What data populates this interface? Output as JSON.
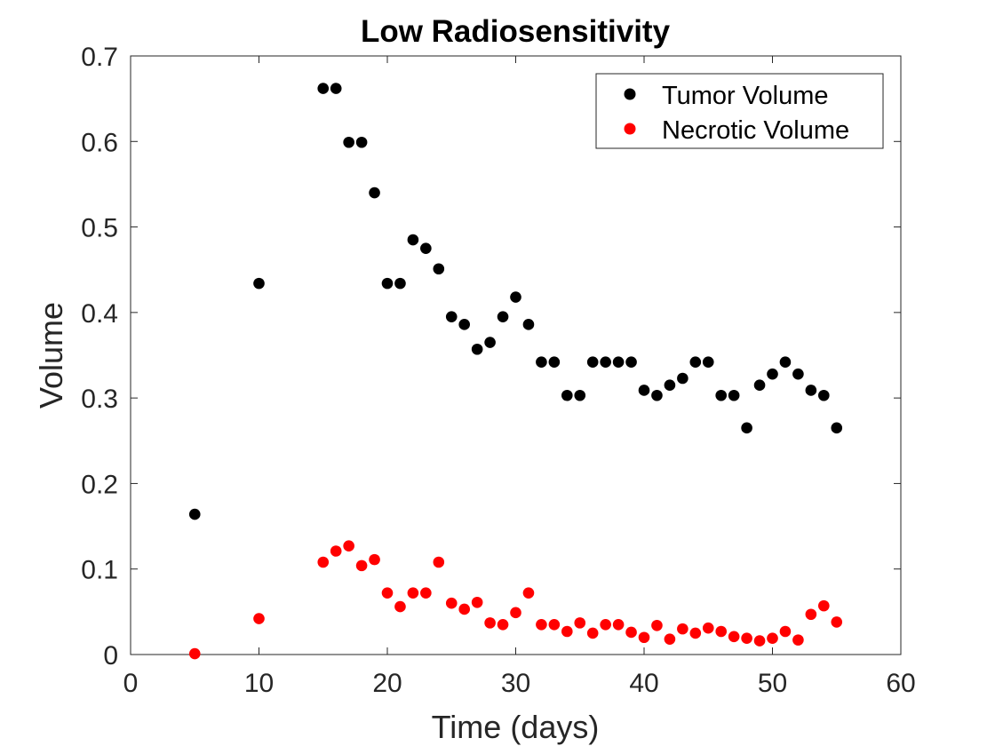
{
  "chart_data": {
    "type": "scatter",
    "title": "Low Radiosensitivity",
    "xlabel": "Time (days)",
    "ylabel": "Volume",
    "xlim": [
      0,
      60
    ],
    "ylim": [
      0,
      0.7
    ],
    "xticks": [
      0,
      10,
      20,
      30,
      40,
      50,
      60
    ],
    "yticks": [
      0,
      0.1,
      0.2,
      0.3,
      0.4,
      0.5,
      0.6,
      0.7
    ],
    "xtick_labels": [
      "0",
      "10",
      "20",
      "30",
      "40",
      "50",
      "60"
    ],
    "ytick_labels": [
      "0",
      "0.1",
      "0.2",
      "0.3",
      "0.4",
      "0.5",
      "0.6",
      "0.7"
    ],
    "grid": false,
    "legend_position": "top-right",
    "series": [
      {
        "name": "Tumor Volume",
        "color": "#000000",
        "marker": "filled-circle",
        "x": [
          5,
          10,
          15,
          16,
          17,
          18,
          19,
          20,
          21,
          22,
          23,
          24,
          25,
          26,
          27,
          28,
          29,
          30,
          31,
          32,
          33,
          34,
          35,
          36,
          37,
          38,
          39,
          40,
          41,
          42,
          43,
          44,
          45,
          46,
          47,
          48,
          49,
          50,
          51,
          52,
          53,
          54,
          55
        ],
        "y": [
          0.164,
          0.434,
          0.662,
          0.662,
          0.599,
          0.599,
          0.54,
          0.434,
          0.434,
          0.485,
          0.475,
          0.451,
          0.395,
          0.386,
          0.357,
          0.365,
          0.395,
          0.418,
          0.386,
          0.342,
          0.342,
          0.303,
          0.303,
          0.342,
          0.342,
          0.342,
          0.342,
          0.309,
          0.303,
          0.315,
          0.323,
          0.342,
          0.342,
          0.303,
          0.303,
          0.265,
          0.315,
          0.328,
          0.342,
          0.328,
          0.309,
          0.303,
          0.265
        ]
      },
      {
        "name": "Necrotic Volume",
        "color": "#ff0000",
        "marker": "filled-circle",
        "x": [
          5,
          10,
          15,
          16,
          17,
          18,
          19,
          20,
          21,
          22,
          23,
          24,
          25,
          26,
          27,
          28,
          29,
          30,
          31,
          32,
          33,
          34,
          35,
          36,
          37,
          38,
          39,
          40,
          41,
          42,
          43,
          44,
          45,
          46,
          47,
          48,
          49,
          50,
          51,
          52,
          53,
          54,
          55
        ],
        "y": [
          0.001,
          0.042,
          0.108,
          0.121,
          0.127,
          0.104,
          0.111,
          0.072,
          0.056,
          0.072,
          0.072,
          0.108,
          0.06,
          0.053,
          0.061,
          0.037,
          0.035,
          0.049,
          0.072,
          0.035,
          0.035,
          0.027,
          0.037,
          0.025,
          0.035,
          0.035,
          0.026,
          0.02,
          0.034,
          0.018,
          0.03,
          0.025,
          0.031,
          0.027,
          0.021,
          0.019,
          0.016,
          0.019,
          0.027,
          0.017,
          0.047,
          0.057,
          0.038
        ]
      }
    ]
  }
}
